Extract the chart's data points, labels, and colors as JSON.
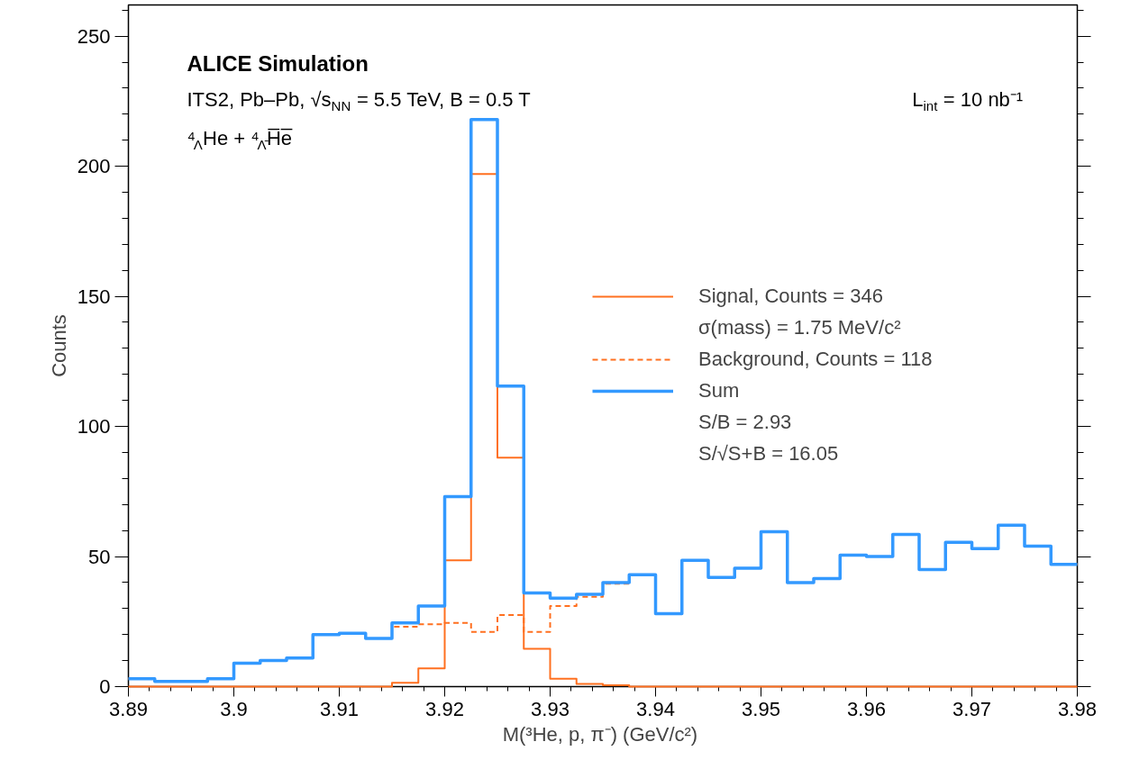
{
  "chart_data": {
    "type": "histogram",
    "title": "ALICE Simulation",
    "xlabel": "M(³He, p,  π⁻) (GeV/c²)",
    "ylabel": "Counts",
    "bins": [
      3.89,
      3.8925,
      3.895,
      3.8975,
      3.9,
      3.9025,
      3.905,
      3.9075,
      3.91,
      3.9125,
      3.915,
      3.9175,
      3.92,
      3.9225,
      3.925,
      3.9275,
      3.93,
      3.9325,
      3.935,
      3.9375,
      3.94,
      3.9425,
      3.945,
      3.9475,
      3.95,
      3.9525,
      3.955,
      3.9575,
      3.96,
      3.9625,
      3.965,
      3.9675,
      3.97,
      3.9725,
      3.975,
      3.9775,
      3.98
    ],
    "series": [
      {
        "name": "Signal, Counts = 346",
        "color": "#ff7020",
        "line_style": "solid",
        "values": [
          0,
          0,
          0,
          0,
          0,
          0,
          0,
          0,
          0,
          0,
          1.5,
          7,
          48.5,
          197,
          88,
          14.5,
          3,
          1,
          0.5,
          0,
          0,
          0,
          0,
          0,
          0,
          0,
          0,
          0,
          0,
          0,
          0,
          0,
          0,
          0,
          0,
          0
        ]
      },
      {
        "name": "Background, Counts = 118",
        "color": "#ff7020",
        "line_style": "dashed",
        "values": [
          3,
          2,
          2,
          3,
          9,
          10,
          11,
          20,
          20.5,
          18.5,
          23,
          24,
          24.5,
          21,
          27.5,
          21,
          31,
          34.5,
          39.5,
          43,
          28,
          48.5,
          42,
          45.5,
          59.5,
          40,
          41.5,
          50.5,
          50,
          58.5,
          45,
          55.5,
          53,
          62,
          54,
          47
        ]
      },
      {
        "name": "Sum",
        "color": "#3399ff",
        "line_style": "solid",
        "values": [
          3,
          2,
          2,
          3,
          9,
          10,
          11,
          20,
          20.5,
          18.5,
          24.5,
          31,
          73,
          218,
          115.5,
          36,
          34,
          35.5,
          40,
          43,
          28,
          48.5,
          42,
          45.5,
          59.5,
          40,
          41.5,
          50.5,
          50,
          58.5,
          45,
          55.5,
          53,
          62,
          54,
          47
        ]
      }
    ],
    "annotations": [
      "ITS2, Pb–Pb, √s$_{NN}$ = 5.5 TeV, B = 0.5 T",
      "L$_{int}$ = 10 nb⁻¹",
      "⁴$_{Λ}$He + ⁴$_{Λ̄}$H̅e̅",
      "σ(mass) = 1.75 MeV/c²",
      "S/B = 2.93",
      "S/√S+B = 16.05"
    ],
    "xlim": [
      3.89,
      3.98
    ],
    "ylim": [
      0,
      262
    ],
    "xticks": [
      3.89,
      3.9,
      3.91,
      3.92,
      3.93,
      3.94,
      3.95,
      3.96,
      3.97,
      3.98
    ],
    "yticks": [
      0,
      50,
      100,
      150,
      200,
      250
    ],
    "grid": false,
    "legend": "right"
  }
}
